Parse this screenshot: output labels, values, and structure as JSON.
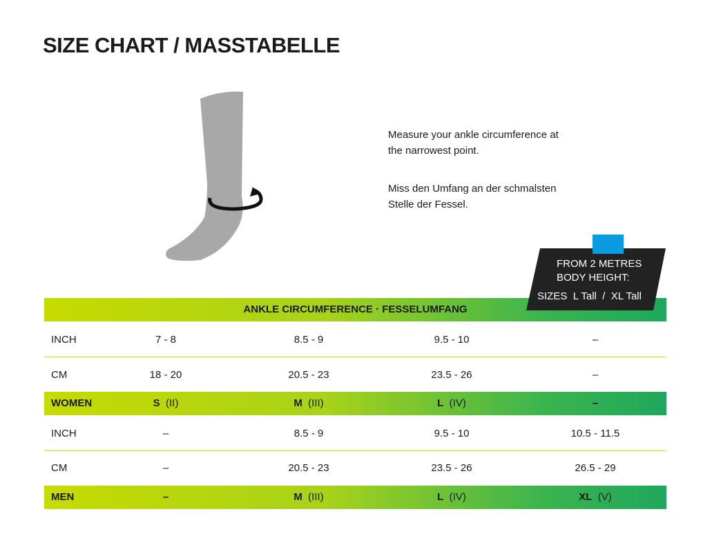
{
  "header": {
    "title": "SIZE CHART / MASSTABELLE"
  },
  "instructions": {
    "en": [
      "Measure your ankle circumference at",
      "the narrowest point."
    ],
    "de": [
      "Miss den Umfang an der schmalsten",
      "Stelle der Fessel."
    ]
  },
  "badge": {
    "lines": [
      "FROM 2 METRES",
      "BODY HEIGHT:"
    ],
    "sizes_label": "SIZES",
    "sizes": [
      "L Tall",
      "/",
      "XL Tall"
    ]
  },
  "table": {
    "heading": "ANKLE CIRCUMFERENCE · FESSELUMFANG",
    "rows": [
      {
        "label": "INCH",
        "cells": [
          "7 - 8",
          "8.5 - 9",
          "9.5 - 10",
          "–"
        ]
      },
      {
        "label": "CM",
        "cells": [
          "18 - 20",
          "20.5 - 23",
          "23.5 - 26",
          "–"
        ]
      },
      {
        "label": "WOMEN",
        "cells": [
          {
            "size": "S",
            "sub": "(II)"
          },
          {
            "size": "M",
            "sub": "(III)"
          },
          {
            "size": "L",
            "sub": "(IV)"
          },
          "–"
        ]
      },
      {
        "label": "INCH",
        "cells": [
          "–",
          "8.5 - 9",
          "9.5 - 10",
          "10.5 - 11.5"
        ]
      },
      {
        "label": "CM",
        "cells": [
          "–",
          "20.5 - 23",
          "23.5 - 26",
          "26.5 - 29"
        ]
      },
      {
        "label": "MEN",
        "cells": [
          "–",
          {
            "size": "M",
            "sub": "(III)"
          },
          {
            "size": "L",
            "sub": "(IV)"
          },
          {
            "size": "XL",
            "sub": "(V)"
          }
        ]
      }
    ]
  }
}
